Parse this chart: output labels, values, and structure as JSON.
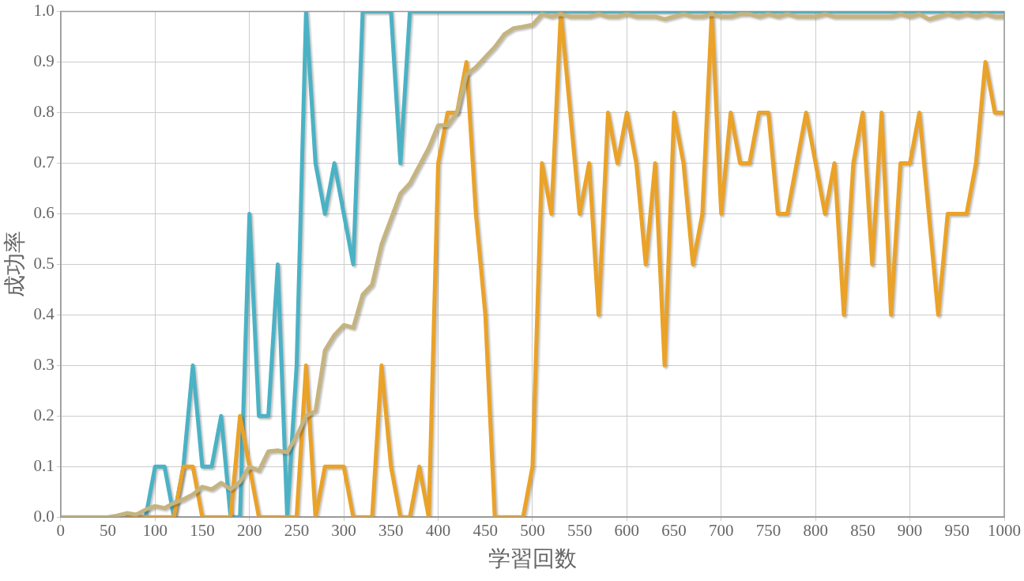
{
  "chart_data": {
    "type": "line",
    "xlabel": "学習回数",
    "ylabel": "成功率",
    "x": [
      0,
      10,
      20,
      30,
      40,
      50,
      60,
      70,
      80,
      90,
      100,
      110,
      120,
      130,
      140,
      150,
      160,
      170,
      180,
      190,
      200,
      210,
      220,
      230,
      240,
      250,
      260,
      270,
      280,
      290,
      300,
      310,
      320,
      330,
      340,
      350,
      360,
      370,
      380,
      390,
      400,
      410,
      420,
      430,
      440,
      450,
      460,
      470,
      480,
      490,
      500,
      510,
      520,
      530,
      540,
      550,
      560,
      570,
      580,
      590,
      600,
      610,
      620,
      630,
      640,
      650,
      660,
      670,
      680,
      690,
      700,
      710,
      720,
      730,
      740,
      750,
      760,
      770,
      780,
      790,
      800,
      810,
      820,
      830,
      840,
      850,
      860,
      870,
      880,
      890,
      900,
      910,
      920,
      930,
      940,
      950,
      960,
      970,
      980,
      990,
      1000
    ],
    "series": [
      {
        "color": "#4bb2c5",
        "values": [
          null,
          null,
          null,
          null,
          null,
          null,
          null,
          null,
          0,
          0,
          0.1,
          0.1,
          0,
          0.1,
          0.3,
          0.1,
          0.1,
          0.2,
          0,
          0,
          0.6,
          0.2,
          0.2,
          0.5,
          0,
          0.3,
          1,
          0.7,
          0.6,
          0.7,
          0.6,
          0.5,
          1,
          1,
          1,
          1,
          0.7,
          1,
          1,
          1,
          1,
          1,
          1,
          1,
          1,
          1,
          1,
          1,
          1,
          1,
          1,
          1,
          1,
          1,
          1,
          1,
          1,
          1,
          1,
          1,
          1,
          1,
          1,
          1,
          1,
          1,
          1,
          1,
          1,
          1,
          1,
          1,
          1,
          1,
          1,
          1,
          1,
          1,
          1,
          1,
          1,
          1,
          1,
          1,
          1,
          1,
          1,
          1,
          1,
          1,
          1,
          1,
          1,
          1,
          1,
          1,
          1,
          1,
          1,
          1,
          1
        ]
      },
      {
        "color": "#eaa228",
        "values": [
          null,
          null,
          null,
          null,
          null,
          null,
          null,
          0,
          0,
          0,
          0,
          0,
          0,
          0.1,
          0.1,
          0,
          0,
          0,
          0,
          0.2,
          0.1,
          0,
          0,
          0,
          0,
          0,
          0.3,
          0,
          0.1,
          0.1,
          0.1,
          0,
          0,
          0,
          0.3,
          0.1,
          0,
          0,
          0.1,
          0,
          0.7,
          0.8,
          0.8,
          0.9,
          0.6,
          0.4,
          0,
          0,
          0,
          0,
          0.1,
          0.7,
          0.6,
          1,
          0.8,
          0.6,
          0.7,
          0.4,
          0.8,
          0.7,
          0.8,
          0.7,
          0.5,
          0.7,
          0.3,
          0.8,
          0.7,
          0.5,
          0.6,
          1,
          0.6,
          0.8,
          0.7,
          0.7,
          0.8,
          0.8,
          0.6,
          0.6,
          0.7,
          0.8,
          0.7,
          0.6,
          0.7,
          0.4,
          0.7,
          0.8,
          0.5,
          0.8,
          0.4,
          0.7,
          0.7,
          0.8,
          0.6,
          0.4,
          0.6,
          0.6,
          0.6,
          0.7,
          0.9,
          0.8,
          0.8
        ]
      },
      {
        "color": "#c5b47f",
        "values": [
          0,
          0,
          0,
          0,
          0,
          0,
          0.003,
          0.008,
          0.005,
          0.015,
          0.022,
          0.018,
          0.028,
          0.035,
          0.045,
          0.06,
          0.055,
          0.068,
          0.055,
          0.07,
          0.1,
          0.092,
          0.13,
          0.132,
          0.128,
          0.16,
          0.2,
          0.21,
          0.33,
          0.36,
          0.38,
          0.375,
          0.44,
          0.46,
          0.54,
          0.59,
          0.64,
          0.66,
          0.695,
          0.73,
          0.775,
          0.775,
          0.8,
          0.875,
          0.89,
          0.91,
          0.93,
          0.955,
          0.967,
          0.97,
          0.974,
          0.995,
          0.99,
          0.995,
          0.99,
          0.99,
          0.99,
          0.995,
          0.99,
          0.99,
          0.995,
          0.99,
          0.99,
          0.99,
          0.985,
          0.99,
          0.995,
          0.99,
          0.99,
          0.995,
          0.99,
          0.99,
          0.995,
          0.995,
          0.99,
          0.995,
          0.99,
          0.995,
          0.99,
          0.99,
          0.99,
          0.995,
          0.99,
          0.99,
          0.99,
          0.99,
          0.99,
          0.99,
          0.99,
          0.995,
          0.99,
          0.995,
          0.985,
          0.99,
          0.995,
          0.99,
          0.995,
          0.99,
          0.995,
          0.99,
          0.99
        ]
      }
    ],
    "xlim": [
      0,
      1000
    ],
    "xticks": [
      0,
      50,
      100,
      150,
      200,
      250,
      300,
      350,
      400,
      450,
      500,
      550,
      600,
      650,
      700,
      750,
      800,
      850,
      900,
      950,
      1000
    ],
    "ylim": [
      0,
      1
    ],
    "yticks": [
      {
        "value": 0,
        "label": "0.0"
      },
      0.1,
      0.2,
      0.3,
      0.4,
      0.5,
      0.6,
      0.7,
      0.8,
      0.9,
      {
        "value": 1,
        "label": "1.0"
      }
    ],
    "grid": true,
    "legend": false,
    "marker": "none",
    "line_style": "solid"
  }
}
